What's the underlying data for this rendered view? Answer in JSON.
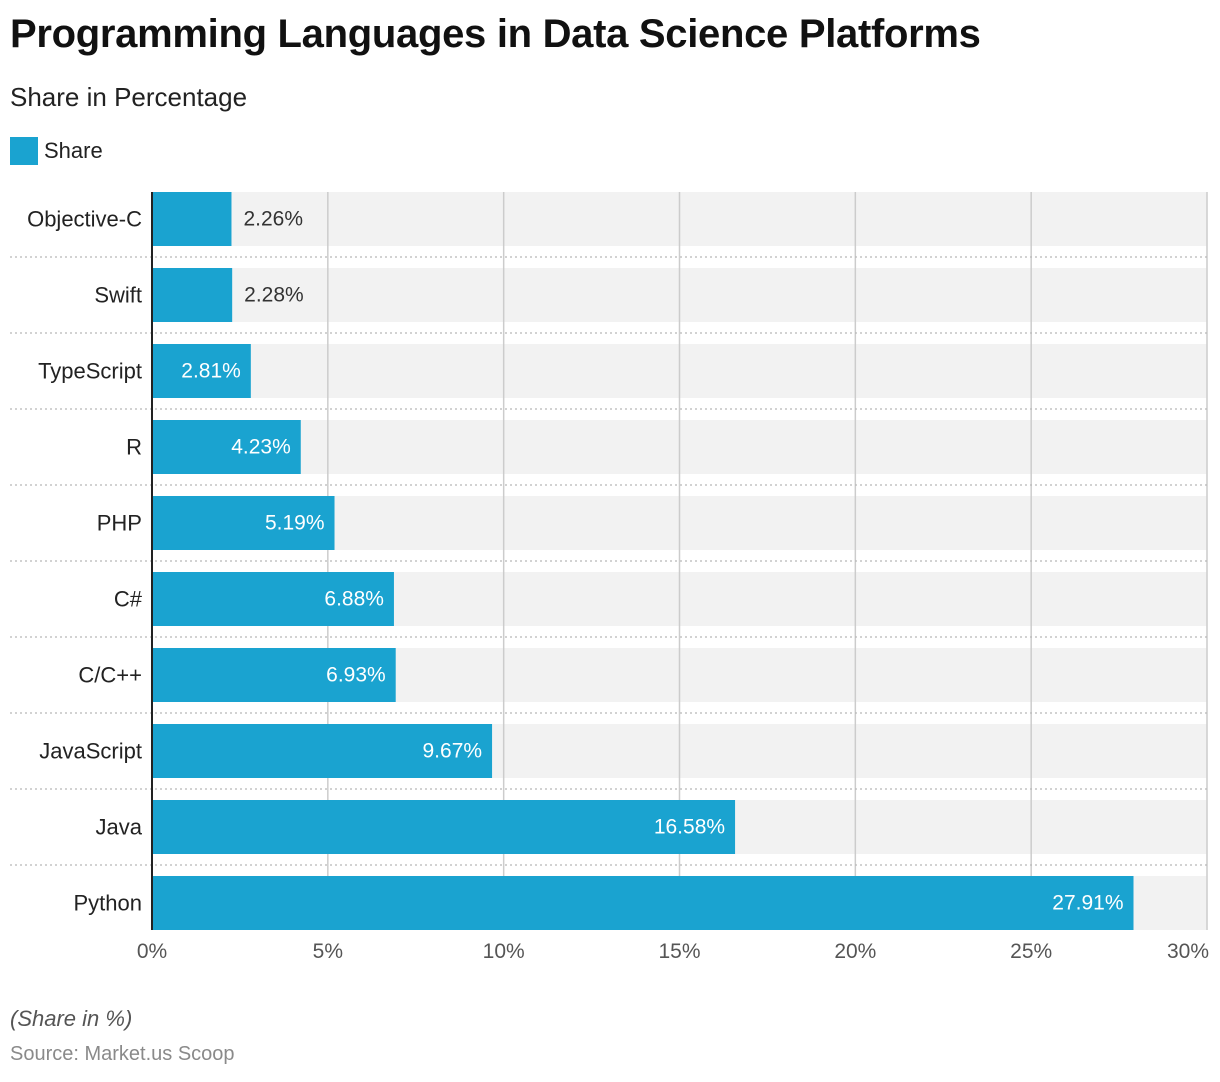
{
  "colors": {
    "bar": "#1aa3d0",
    "band": "#f2f2f2",
    "grid": "#cccccc",
    "axis": "#222222"
  },
  "chart_data": {
    "type": "bar",
    "orientation": "horizontal",
    "title": "Programming Languages in Data Science Platforms",
    "subtitle": "Share in Percentage",
    "categories": [
      "Objective-C",
      "Swift",
      "TypeScript",
      "R",
      "PHP",
      "C#",
      "C/C++",
      "JavaScript",
      "Java",
      "Python"
    ],
    "series": [
      {
        "name": "Share",
        "values": [
          2.26,
          2.28,
          2.81,
          4.23,
          5.19,
          6.88,
          6.93,
          9.67,
          16.58,
          27.91
        ],
        "labels": [
          "2.26%",
          "2.28%",
          "2.81%",
          "4.23%",
          "5.19%",
          "6.88%",
          "6.93%",
          "9.67%",
          "16.58%",
          "27.91%"
        ]
      }
    ],
    "xlim": [
      0,
      30
    ],
    "xticks": [
      0,
      5,
      10,
      15,
      20,
      25,
      30
    ],
    "xtick_labels": [
      "0%",
      "5%",
      "10%",
      "15%",
      "20%",
      "25%",
      "30%"
    ],
    "grid": true,
    "legend_position": "top-left",
    "note": "(Share in %)",
    "source": "Source: Market.us Scoop"
  }
}
